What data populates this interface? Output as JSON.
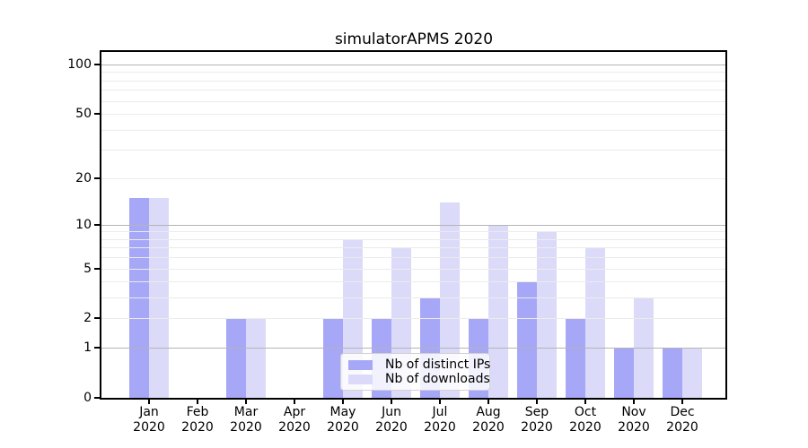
{
  "figure": {
    "title": "simulatorAPMS 2020"
  },
  "legend": {
    "items": [
      {
        "label": "Nb of distinct IPs",
        "color": "#a7a7f8"
      },
      {
        "label": "Nb of downloads",
        "color": "#dbdbf9"
      }
    ]
  },
  "chart_data": {
    "type": "bar",
    "title": "simulatorAPMS 2020",
    "categories": [
      "Jan",
      "Feb",
      "Mar",
      "Apr",
      "May",
      "Jun",
      "Jul",
      "Aug",
      "Sep",
      "Oct",
      "Nov",
      "Dec"
    ],
    "year": "2020",
    "series": [
      {
        "key": "ips",
        "name": "Nb of distinct IPs",
        "color": "#a7a7f8",
        "values": [
          15,
          0,
          2,
          0,
          2,
          2,
          3,
          2,
          4,
          2,
          1,
          1
        ]
      },
      {
        "key": "downloads",
        "name": "Nb of downloads",
        "color": "#dbdbf9",
        "values": [
          15,
          0,
          2,
          0,
          8,
          7,
          14,
          10,
          9,
          7,
          3,
          1
        ]
      }
    ],
    "yscale": "log1p",
    "ylim": [
      0,
      119
    ],
    "yticks": [
      0,
      1,
      2,
      5,
      10,
      20,
      50,
      100
    ],
    "major_gridlines": [
      1,
      10,
      100
    ],
    "minor_gridlines": [
      2,
      3,
      4,
      5,
      6,
      7,
      8,
      9,
      20,
      30,
      40,
      50,
      60,
      70,
      80,
      90
    ],
    "grid": true,
    "legend_position": "lower center",
    "colors": {
      "major_grid": "#b4b4b4",
      "minor_grid": "#ebebeb",
      "spine": "#000000",
      "text": "#000000"
    }
  }
}
